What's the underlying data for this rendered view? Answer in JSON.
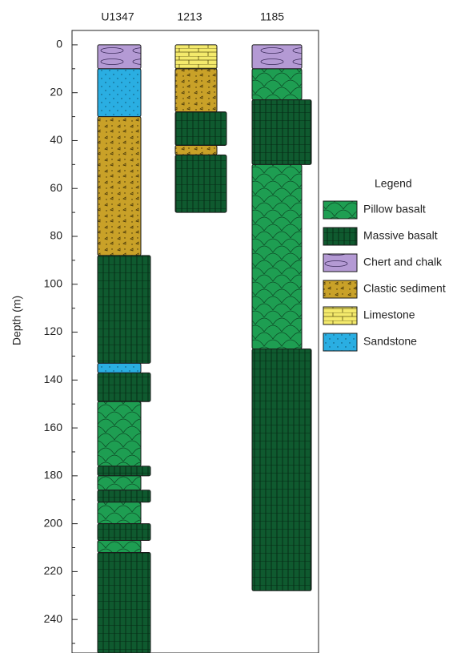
{
  "chart_data": {
    "type": "stratigraphic-column",
    "y_label": "Depth (m)",
    "ylim": [
      -6,
      254
    ],
    "yticks": [
      0,
      20,
      40,
      60,
      80,
      100,
      120,
      140,
      160,
      180,
      200,
      220,
      240
    ],
    "minor_yticks": [
      10,
      30,
      50,
      70,
      90,
      110,
      130,
      150,
      170,
      190,
      210,
      230,
      250
    ],
    "legend_title": "Legend",
    "legend": [
      {
        "name": "Pillow basalt",
        "color": "#1e9e52"
      },
      {
        "name": "Massive basalt",
        "color": "#0f5a2f"
      },
      {
        "name": "Chert and chalk",
        "color": "#b49ad4"
      },
      {
        "name": "Clastic sediment",
        "color": "#c9a128"
      },
      {
        "name": "Limestone",
        "color": "#f4ea6c"
      },
      {
        "name": "Sandstone",
        "color": "#2aaee2"
      }
    ],
    "columns": [
      {
        "name": "U1347",
        "layers": [
          {
            "lithology": "Chert and chalk",
            "top": 0,
            "bottom": 10
          },
          {
            "lithology": "Sandstone",
            "top": 10,
            "bottom": 30
          },
          {
            "lithology": "Clastic sediment",
            "top": 30,
            "bottom": 88
          },
          {
            "lithology": "Massive basalt",
            "top": 88,
            "bottom": 133
          },
          {
            "lithology": "Sandstone",
            "top": 133,
            "bottom": 137
          },
          {
            "lithology": "Massive basalt",
            "top": 137,
            "bottom": 149
          },
          {
            "lithology": "Pillow basalt",
            "top": 149,
            "bottom": 176
          },
          {
            "lithology": "Massive basalt",
            "top": 176,
            "bottom": 180
          },
          {
            "lithology": "Pillow basalt",
            "top": 180,
            "bottom": 186
          },
          {
            "lithology": "Massive basalt",
            "top": 186,
            "bottom": 191
          },
          {
            "lithology": "Pillow basalt",
            "top": 191,
            "bottom": 200
          },
          {
            "lithology": "Massive basalt",
            "top": 200,
            "bottom": 207
          },
          {
            "lithology": "Pillow basalt",
            "top": 207,
            "bottom": 212
          },
          {
            "lithology": "Massive basalt",
            "top": 212,
            "bottom": 254
          }
        ]
      },
      {
        "name": "1213",
        "layers": [
          {
            "lithology": "Limestone",
            "top": 0,
            "bottom": 10
          },
          {
            "lithology": "Clastic sediment",
            "top": 10,
            "bottom": 28
          },
          {
            "lithology": "Massive basalt",
            "top": 28,
            "bottom": 42
          },
          {
            "lithology": "Clastic sediment",
            "top": 42,
            "bottom": 46
          },
          {
            "lithology": "Massive basalt",
            "top": 46,
            "bottom": 70
          }
        ]
      },
      {
        "name": "1185",
        "layers": [
          {
            "lithology": "Chert and chalk",
            "top": 0,
            "bottom": 10
          },
          {
            "lithology": "Pillow basalt",
            "top": 10,
            "bottom": 23
          },
          {
            "lithology": "Massive basalt",
            "top": 23,
            "bottom": 50
          },
          {
            "lithology": "Pillow basalt",
            "top": 50,
            "bottom": 127
          },
          {
            "lithology": "Massive basalt",
            "top": 127,
            "bottom": 228
          }
        ]
      }
    ]
  }
}
